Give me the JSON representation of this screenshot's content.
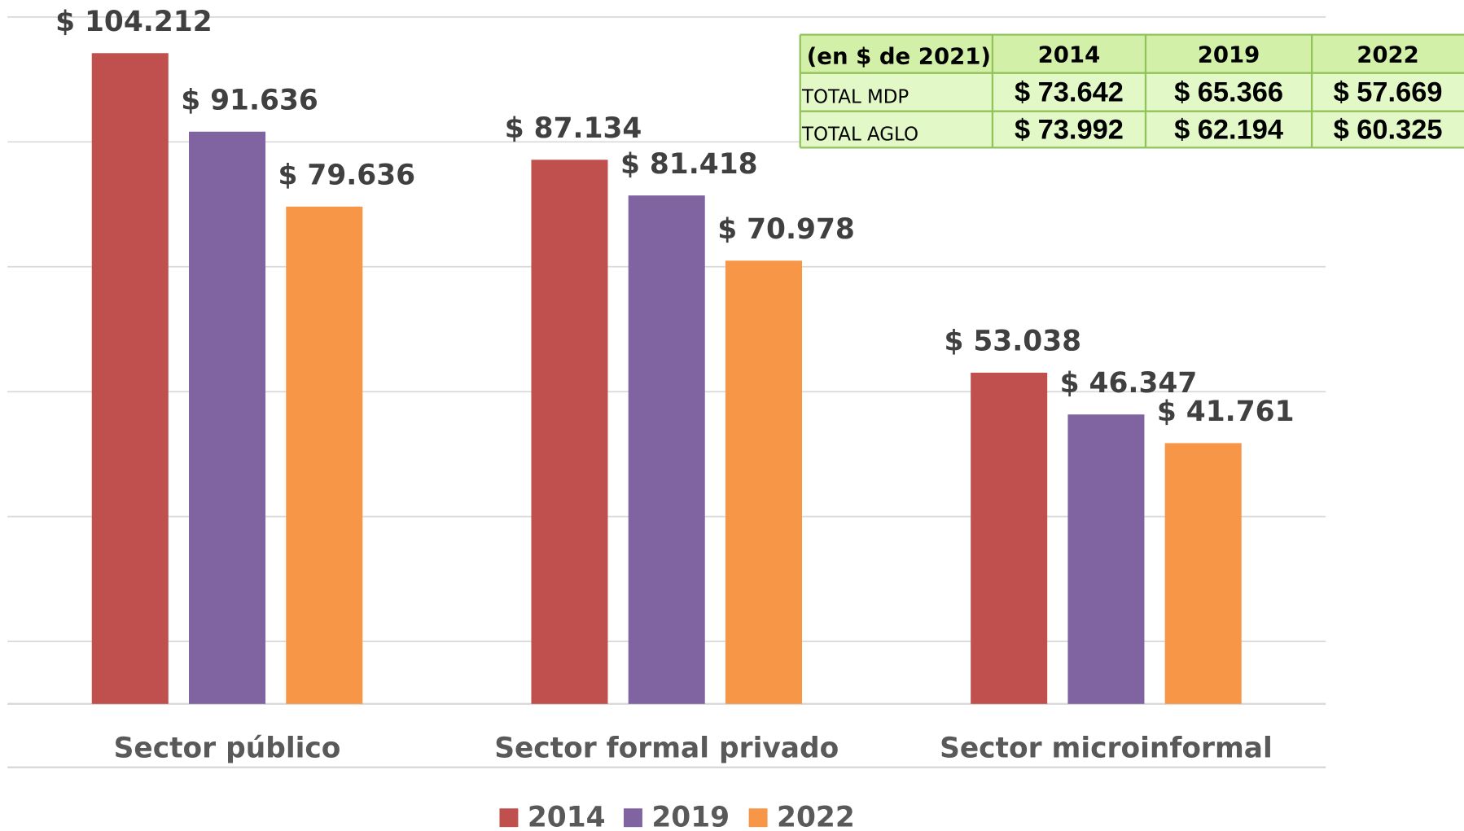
{
  "chart_data": {
    "type": "bar",
    "categories": [
      "Sector público",
      "Sector formal privado",
      "Sector microinformal"
    ],
    "series": [
      {
        "name": "2014",
        "color": "#c0504d",
        "values": [
          104212,
          87134,
          53038
        ],
        "value_labels": [
          "$ 104.212",
          "$ 87.134",
          "$ 53.038"
        ]
      },
      {
        "name": "2019",
        "color": "#8064a2",
        "values": [
          91636,
          81418,
          46347
        ],
        "value_labels": [
          "$ 91.636",
          "$ 81.418",
          "$ 46.347"
        ]
      },
      {
        "name": "2022",
        "color": "#f79646",
        "values": [
          79636,
          70978,
          41761
        ],
        "value_labels": [
          "$ 79.636",
          "$ 70.978",
          "$ 41.761"
        ]
      }
    ],
    "ylim": [
      0,
      110000
    ],
    "yticks": [
      10000,
      30000,
      50000,
      70000,
      90000,
      110000
    ],
    "grid": true,
    "legend": "bottom"
  },
  "table": {
    "header": [
      "(en $ de 2021)",
      "2014",
      "2019",
      "2022"
    ],
    "rows": [
      [
        "TOTAL MDP",
        "$ 73.642",
        "$ 65.366",
        "$ 57.669"
      ],
      [
        "TOTAL AGLO",
        "$ 73.992",
        "$ 62.194",
        "$ 60.325"
      ]
    ]
  }
}
